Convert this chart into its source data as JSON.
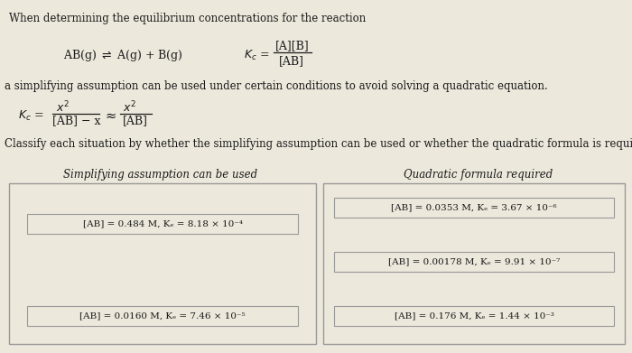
{
  "bg_color": "#ede8dc",
  "text_color": "#1a1a1a",
  "box_edge": "#aaaaaa",
  "line1": "When determining the equilibrium concentrations for the reaction",
  "line_simplify": "a simplifying assumption can be used under certain conditions to avoid solving a quadratic equation.",
  "line_classify": "Classify each situation by whether the simplifying assumption can be used or whether the quadratic formula is required.",
  "col1_title": "Simplifying assumption can be used",
  "col2_title": "Quadratic formula required",
  "col1_items": [
    "[AB] = 0.484 M, Kₑ = 8.18 × 10⁻⁴",
    "[AB] = 0.0160 M, Kₑ = 7.46 × 10⁻⁵"
  ],
  "col2_items": [
    "[AB] = 0.0353 M, Kₑ = 3.67 × 10⁻⁶",
    "[AB] = 0.00178 M, Kₑ = 9.91 × 10⁻⁷",
    "[AB] = 0.176 M, Kₑ = 1.44 × 10⁻³"
  ]
}
